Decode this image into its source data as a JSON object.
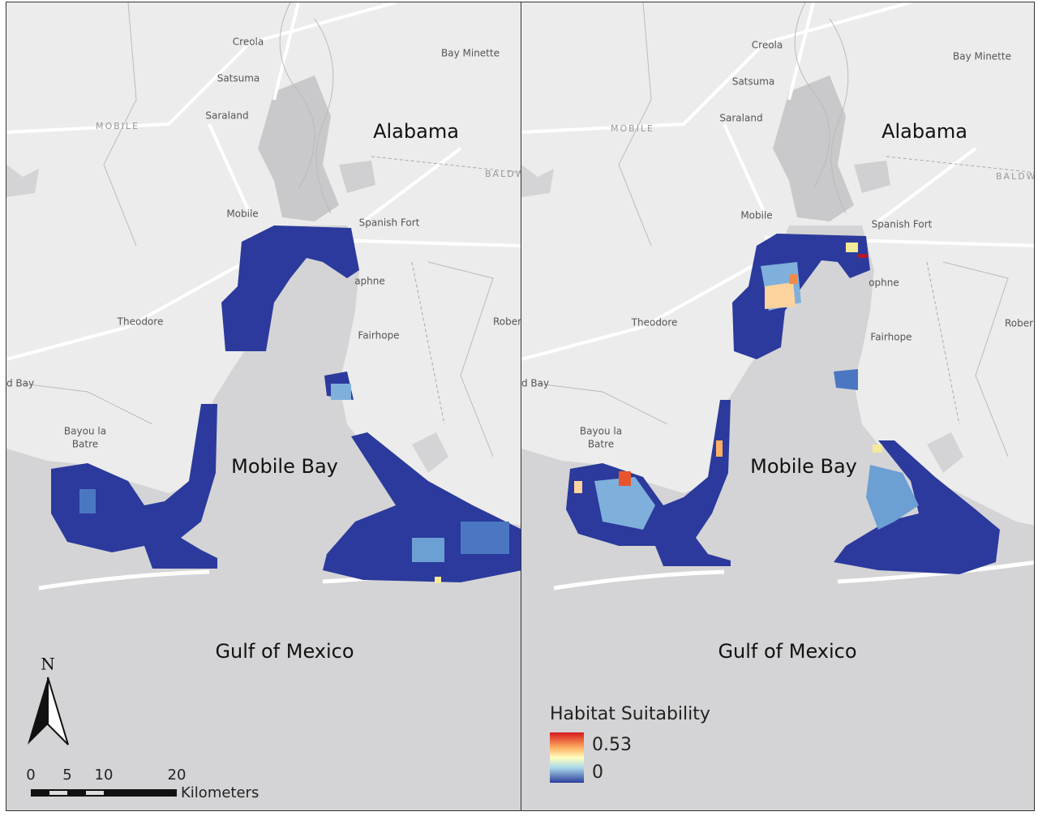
{
  "panels": [
    {
      "labels": [
        "Creola",
        "Satsuma",
        "Saraland",
        "MOBILE",
        "Alabama",
        "Bay Minette",
        "Mobile",
        "Spanish Fort",
        "aphne",
        "Theodore",
        "Fairhope",
        "Rober",
        "d Bay",
        "Bayou la",
        "Batre",
        "Mobile Bay",
        "Gulf of Mexico",
        "BALDW"
      ]
    },
    {
      "labels": [
        "Creola",
        "Satsuma",
        "Saraland",
        "MOBILE",
        "Alabama",
        "Bay Minette",
        "Mobile",
        "Spanish Fort",
        "ophne",
        "Theodore",
        "Fairhope",
        "Rober",
        "d Bay",
        "Bayou la",
        "Batre",
        "Mobile Bay",
        "Gulf of Mexico",
        "BALDW"
      ]
    }
  ],
  "north": "N",
  "scale": {
    "ticks": [
      "0",
      "5",
      "10",
      "20"
    ],
    "unit": "Kilometers"
  },
  "legend": {
    "title": "Habitat Suitability",
    "max": "0.53",
    "min": "0"
  }
}
